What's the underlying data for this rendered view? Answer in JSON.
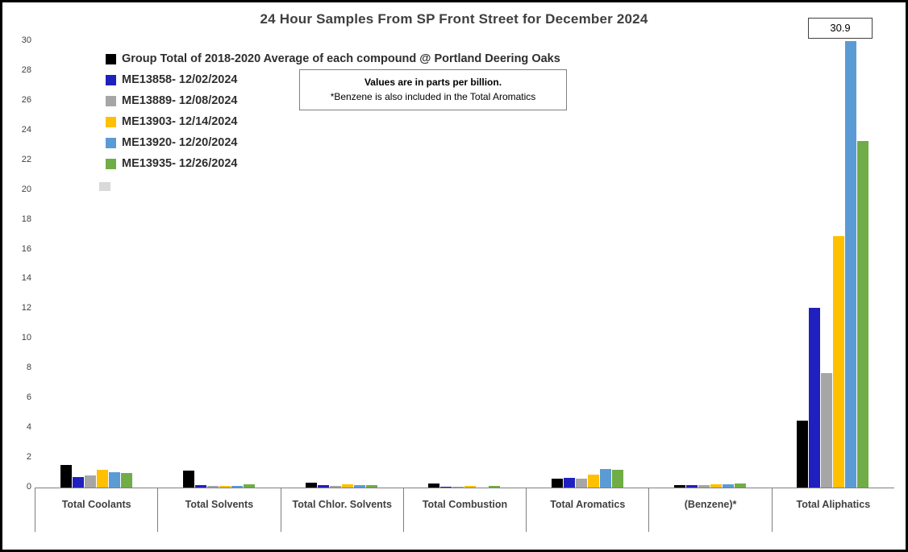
{
  "title": "24 Hour Samples From SP Front Street for December 2024",
  "annotation_label": "30.9",
  "note": {
    "line1": "Values are in parts per billion.",
    "line2": "*Benzene is also included in the Total Aromatics"
  },
  "chart_data": {
    "type": "bar",
    "title": "24 Hour Samples From SP Front Street for December 2024",
    "units": "parts per billion",
    "categories": [
      "Total Coolants",
      "Total Solvents",
      "Total Chlor. Solvents",
      "Total Combustion",
      "Total Aromatics",
      "(Benzene)*",
      "Total Aliphatics"
    ],
    "series": [
      {
        "name": "Group Total of 2018-2020 Average of each compound @ Portland Deering Oaks",
        "color": "#000000",
        "values": [
          1.5,
          1.15,
          0.35,
          0.27,
          0.6,
          0.15,
          4.5
        ]
      },
      {
        "name": "ME13858- 12/02/2024",
        "color": "#2020BE",
        "values": [
          0.7,
          0.16,
          0.15,
          0.05,
          0.65,
          0.15,
          12.1
        ]
      },
      {
        "name": "ME13889- 12/08/2024",
        "color": "#A6A6A6",
        "values": [
          0.8,
          0.1,
          0.1,
          0.05,
          0.6,
          0.15,
          7.7
        ]
      },
      {
        "name": "ME13903- 12/14/2024",
        "color": "#FFC000",
        "values": [
          1.2,
          0.1,
          0.2,
          0.1,
          0.85,
          0.2,
          16.9
        ]
      },
      {
        "name": "ME13920- 12/20/2024",
        "color": "#5B9BD5",
        "values": [
          1.05,
          0.1,
          0.15,
          0.0,
          1.25,
          0.2,
          30.9
        ]
      },
      {
        "name": "ME13935- 12/26/2024",
        "color": "#70AD47",
        "values": [
          1.0,
          0.2,
          0.15,
          0.1,
          1.2,
          0.27,
          23.3
        ]
      }
    ],
    "ylim": [
      0,
      30
    ],
    "ytick_step": 2,
    "grid": false,
    "legend_position": "inside-top-left",
    "annotations": [
      {
        "text": "30.9",
        "note": "ME13920 12/20/2024 Total Aliphatics bar exceeds axis, clipped at 30"
      }
    ]
  }
}
